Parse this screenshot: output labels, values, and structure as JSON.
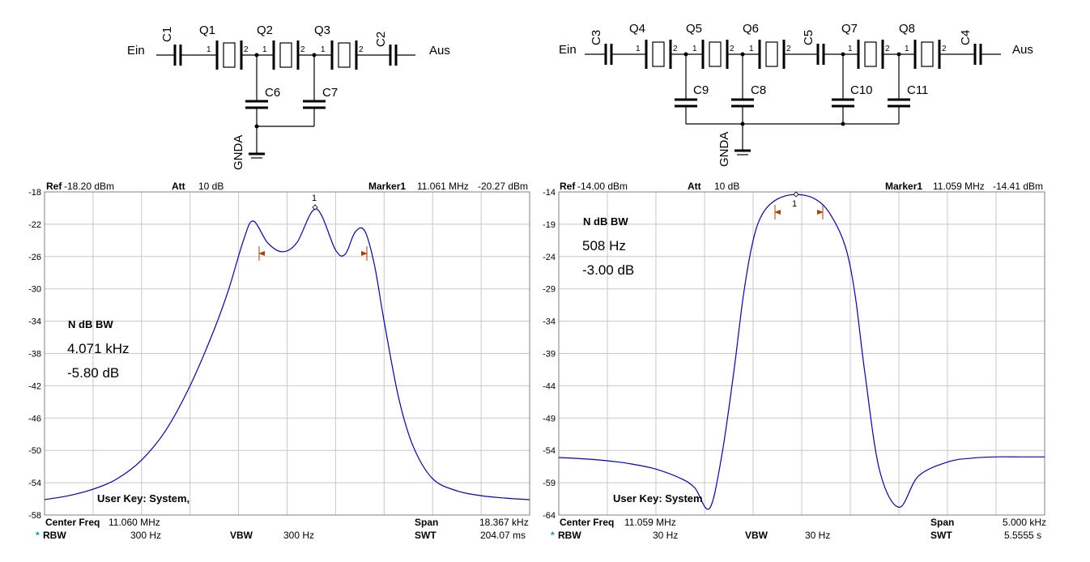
{
  "schematic_left": {
    "in_label": "Ein",
    "out_label": "Aus",
    "gnd_label": "GNDA",
    "caps": [
      "C1",
      "C2",
      "C6",
      "C7"
    ],
    "crystals": [
      "Q1",
      "Q2",
      "Q3"
    ],
    "pins": [
      "1",
      "2"
    ]
  },
  "schematic_right": {
    "in_label": "Ein",
    "out_label": "Aus",
    "gnd_label": "GNDA",
    "caps": [
      "C3",
      "C5",
      "C4",
      "C9",
      "C8",
      "C10",
      "C11"
    ],
    "crystals": [
      "Q4",
      "Q5",
      "Q6",
      "Q7",
      "Q8"
    ],
    "pins": [
      "1",
      "2"
    ]
  },
  "plot_left": {
    "ref_label": "Ref",
    "ref_value": "-18.20 dBm",
    "att_label": "Att",
    "att_value": "10 dB",
    "marker_label": "Marker1",
    "marker_freq": "11.061 MHz",
    "marker_level": "-20.27 dBm",
    "marker_num": "1",
    "ndb_title": "N dB BW",
    "ndb_bw": "4.071 kHz",
    "ndb_db": "-5.80 dB",
    "user_key": "User Key:   System,",
    "center_label": "Center Freq",
    "center_value": "11.060 MHz",
    "span_label": "Span",
    "span_value": "18.367 kHz",
    "rbw_star": "*",
    "rbw_label": "RBW",
    "rbw_value": "300 Hz",
    "vbw_label": "VBW",
    "vbw_value": "300 Hz",
    "swt_label": "SWT",
    "swt_value": "204.07 ms"
  },
  "plot_right": {
    "ref_label": "Ref",
    "ref_value": "-14.00 dBm",
    "att_label": "Att",
    "att_value": "10 dB",
    "marker_label": "Marker1",
    "marker_freq": "11.059 MHz",
    "marker_level": "-14.41 dBm",
    "marker_num": "1",
    "ndb_title": "N dB BW",
    "ndb_bw": "508 Hz",
    "ndb_db": "-3.00 dB",
    "user_key": "User Key:   System",
    "center_label": "Center Freq",
    "center_value": "11.059 MHz",
    "span_label": "Span",
    "span_value": "5.000 kHz",
    "rbw_star": "*",
    "rbw_label": "RBW",
    "rbw_value": "30 Hz",
    "vbw_label": "VBW",
    "vbw_value": "30 Hz",
    "swt_label": "SWT",
    "swt_value": "5.5555 s"
  },
  "colors": {
    "trace": "#0000c8",
    "grid": "#c8c8c8",
    "marker": "#b04000",
    "rbw_star": "#00a0c0"
  },
  "chart_data": [
    {
      "type": "line",
      "ylim": [
        -58,
        -18
      ],
      "yticks": [
        "-18",
        "-22",
        "-26",
        "-30",
        "-34",
        "-38",
        "-42",
        "-46",
        "-50",
        "-54",
        "-58"
      ],
      "x": [
        0,
        0.05,
        0.1,
        0.15,
        0.2,
        0.25,
        0.3,
        0.35,
        0.38,
        0.41,
        0.43,
        0.46,
        0.49,
        0.52,
        0.56,
        0.6,
        0.62,
        0.64,
        0.66,
        0.68,
        0.7,
        0.73,
        0.76,
        0.8,
        0.85,
        0.9,
        0.95,
        1
      ],
      "series": [
        {
          "values": [
            -56.1,
            -55.6,
            -54.8,
            -53.5,
            -51.2,
            -47.5,
            -42,
            -35,
            -30,
            -24,
            -21.6,
            -24.3,
            -25.4,
            -24.3,
            -20.1,
            -25.2,
            -25.7,
            -23,
            -22.8,
            -27,
            -34,
            -43.5,
            -49.5,
            -53.5,
            -55,
            -55.6,
            -55.9,
            -56.1
          ]
        }
      ]
    },
    {
      "type": "line",
      "ylim": [
        -64,
        -14
      ],
      "yticks": [
        "-14",
        "-19",
        "-24",
        "-29",
        "-34",
        "-39",
        "-44",
        "-49",
        "-54",
        "-59",
        "-64"
      ],
      "x": [
        0,
        0.05,
        0.1,
        0.15,
        0.2,
        0.25,
        0.28,
        0.31,
        0.335,
        0.36,
        0.38,
        0.4,
        0.42,
        0.45,
        0.49,
        0.53,
        0.56,
        0.59,
        0.61,
        0.63,
        0.66,
        0.7,
        0.74,
        0.8,
        0.85,
        0.9,
        0.95,
        1
      ],
      "series": [
        {
          "values": [
            -55.1,
            -55.3,
            -55.6,
            -56.1,
            -56.9,
            -58.3,
            -59.8,
            -63,
            -55,
            -42,
            -30,
            -21.5,
            -17.3,
            -15.1,
            -14.4,
            -15.2,
            -17.6,
            -22.5,
            -30,
            -42,
            -57,
            -62.8,
            -58,
            -55.8,
            -55.2,
            -55,
            -55,
            -55
          ]
        }
      ]
    }
  ]
}
